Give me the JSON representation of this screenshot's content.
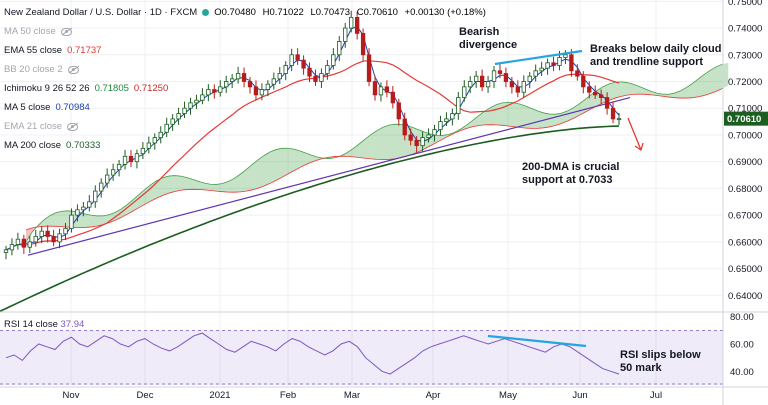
{
  "header": {
    "symbol": "New Zealand Dollar / U.S. Dollar · 1D · FXCM",
    "open": "O0.70480",
    "high": "H0.71022",
    "low": "L0.70473",
    "close": "C0.70610",
    "change": "+0.00130 (+0.18%)",
    "up_color": "#26a69a"
  },
  "indicators": [
    {
      "label": "MA 50 close",
      "value": "",
      "visible": false
    },
    {
      "label": "EMA 55 close",
      "value": "0.71737",
      "color": "#e53935",
      "visible": true
    },
    {
      "label": "BB 20 close 2",
      "value": "",
      "visible": false
    },
    {
      "label": "Ichimoku 9 26 52 26",
      "value": "0.71805",
      "value2": "0.71250",
      "color": "#1b8a3a",
      "color2": "#c62828",
      "visible": true
    },
    {
      "label": "MA 5 close",
      "value": "0.70984",
      "color": "#1e40af",
      "visible": true
    },
    {
      "label": "EMA 21 close",
      "value": "",
      "visible": false
    },
    {
      "label": "MA 200 close",
      "value": "0.70333",
      "color": "#1b5e20",
      "visible": true
    }
  ],
  "rsi_label": {
    "label": "RSI 14 close",
    "value": "37.94",
    "color": "#7e57c2"
  },
  "annotations": {
    "bearish": "Bearish\ndivergence",
    "breaks": "Breaks below daily cloud\nand trendline support",
    "dma": "200-DMA is crucial\nsupport at 0.7033",
    "rsi": "RSI slips below\n50 mark"
  },
  "price_badge": "0.70610",
  "chart_data": [
    {
      "type": "candlestick",
      "yaxis_ticks": [
        "0.75000",
        "0.74000",
        "0.73000",
        "0.72000",
        "0.71000",
        "0.70000",
        "0.69000",
        "0.68000",
        "0.67000",
        "0.66000",
        "0.65000",
        "0.64000"
      ],
      "ylim": [
        0.6345,
        0.7505
      ],
      "xaxis_ticks": [
        "Nov",
        "Dec",
        "2021",
        "Feb",
        "Mar",
        "Apr",
        "May",
        "Jun",
        "Jul"
      ],
      "last_price": 0.7061,
      "closes": [
        0.657,
        0.659,
        0.661,
        0.658,
        0.66,
        0.662,
        0.664,
        0.662,
        0.66,
        0.663,
        0.665,
        0.67,
        0.672,
        0.673,
        0.675,
        0.679,
        0.682,
        0.685,
        0.687,
        0.689,
        0.692,
        0.69,
        0.693,
        0.695,
        0.697,
        0.699,
        0.701,
        0.704,
        0.706,
        0.708,
        0.71,
        0.712,
        0.713,
        0.715,
        0.717,
        0.716,
        0.718,
        0.72,
        0.721,
        0.723,
        0.72,
        0.718,
        0.715,
        0.717,
        0.719,
        0.721,
        0.723,
        0.726,
        0.73,
        0.728,
        0.725,
        0.722,
        0.72,
        0.723,
        0.726,
        0.73,
        0.735,
        0.74,
        0.744,
        0.738,
        0.73,
        0.72,
        0.715,
        0.718,
        0.716,
        0.712,
        0.706,
        0.7,
        0.698,
        0.696,
        0.699,
        0.7,
        0.702,
        0.705,
        0.706,
        0.708,
        0.714,
        0.718,
        0.72,
        0.722,
        0.718,
        0.72,
        0.724,
        0.723,
        0.72,
        0.718,
        0.716,
        0.72,
        0.722,
        0.724,
        0.725,
        0.727,
        0.726,
        0.729,
        0.73,
        0.724,
        0.722,
        0.718,
        0.716,
        0.715,
        0.714,
        0.71,
        0.706,
        0.7061
      ],
      "series": [
        {
          "name": "MA 200",
          "values": [
            0.634,
            0.7033
          ]
        },
        {
          "name": "EMA 55",
          "values": [
            0.66,
            0.7174
          ]
        },
        {
          "name": "MA 5",
          "values": [
            0.657,
            0.7098
          ]
        }
      ],
      "trendline": {
        "from": 0.655,
        "to": 0.714
      },
      "cloud": {
        "span_a_last": 0.71805,
        "span_b_last": 0.7125
      }
    },
    {
      "type": "line",
      "title": "RSI 14 close",
      "yaxis_ticks": [
        "80.00",
        "60.00",
        "40.00"
      ],
      "ylim": [
        30,
        82
      ],
      "band": [
        30,
        70
      ],
      "last_value": 37.94,
      "values": [
        50,
        52,
        48,
        55,
        60,
        58,
        56,
        62,
        65,
        60,
        58,
        62,
        66,
        64,
        60,
        58,
        62,
        64,
        60,
        57,
        55,
        58,
        62,
        66,
        68,
        64,
        60,
        56,
        54,
        58,
        62,
        60,
        58,
        55,
        60,
        64,
        62,
        58,
        55,
        52,
        55,
        60,
        62,
        58,
        50,
        45,
        40,
        38,
        42,
        46,
        50,
        55,
        58,
        60,
        62,
        64,
        66,
        64,
        62,
        60,
        62,
        64,
        62,
        60,
        58,
        56,
        54,
        58,
        60,
        58,
        54,
        50,
        46,
        42,
        40,
        38
      ]
    }
  ]
}
